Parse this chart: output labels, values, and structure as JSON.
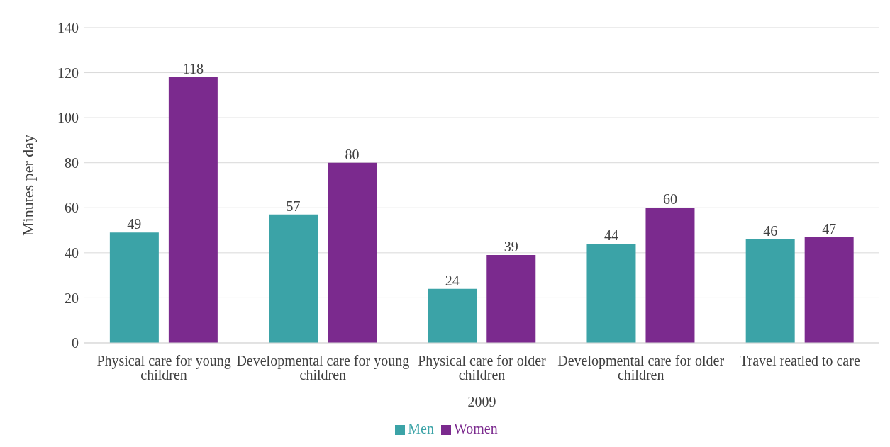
{
  "chart_data": {
    "type": "bar",
    "ylabel": "Minutes per day",
    "xlabel": "2009",
    "categories": [
      "Physical care for young children",
      "Developmental care for young children",
      "Physical care for older children",
      "Developmental care for older children",
      "Travel reatled to care"
    ],
    "series": [
      {
        "name": "Men",
        "color": "#3ba3a7",
        "values": [
          49,
          57,
          24,
          44,
          46
        ]
      },
      {
        "name": "Women",
        "color": "#7b2a8e",
        "values": [
          118,
          80,
          39,
          60,
          47
        ]
      }
    ],
    "ylim": [
      0,
      140
    ],
    "yticks": [
      0,
      20,
      40,
      60,
      80,
      100,
      120,
      140
    ],
    "grid": "y",
    "legend": "bottom",
    "data_labels": true
  }
}
